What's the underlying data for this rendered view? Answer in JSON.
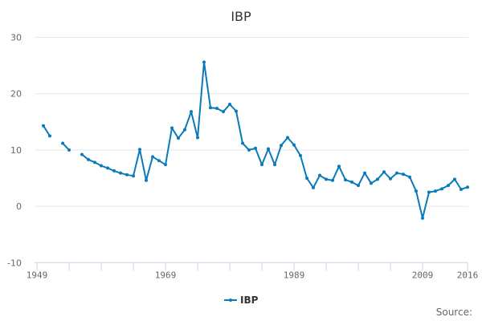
{
  "chart_data": {
    "type": "line",
    "title": "IBP",
    "xlabel": "",
    "ylabel": "",
    "ylim": [
      -10,
      30
    ],
    "yticks": [
      -10,
      0,
      10,
      20,
      30
    ],
    "xlim": [
      1949,
      2016
    ],
    "xtick_labels": [
      "1949",
      "1969",
      "1989",
      "2009",
      "2016"
    ],
    "xtick_marks": [
      1949,
      1954,
      1959,
      1964,
      1969,
      1974,
      1979,
      1984,
      1989,
      1994,
      1999,
      2004,
      2009,
      2016
    ],
    "grid": true,
    "legend_position": "bottom",
    "series": [
      {
        "name": "IBP",
        "color": "#0a7ab9",
        "points": [
          [
            1950,
            14.3
          ],
          [
            1951,
            12.5
          ],
          [
            1952,
            null
          ],
          [
            1953,
            11.2
          ],
          [
            1954,
            10.0
          ],
          [
            1955,
            null
          ],
          [
            1956,
            9.2
          ],
          [
            1957,
            8.3
          ],
          [
            1958,
            7.8
          ],
          [
            1959,
            7.2
          ],
          [
            1960,
            6.8
          ],
          [
            1961,
            6.3
          ],
          [
            1962,
            5.9
          ],
          [
            1963,
            5.6
          ],
          [
            1964,
            5.4
          ],
          [
            1965,
            10.1
          ],
          [
            1966,
            4.6
          ],
          [
            1967,
            8.8
          ],
          [
            1968,
            8.1
          ],
          [
            1969,
            7.4
          ],
          [
            1970,
            13.9
          ],
          [
            1971,
            12.1
          ],
          [
            1972,
            13.6
          ],
          [
            1973,
            16.8
          ],
          [
            1974,
            12.2
          ],
          [
            1975,
            25.6
          ],
          [
            1976,
            17.5
          ],
          [
            1977,
            17.4
          ],
          [
            1978,
            16.8
          ],
          [
            1979,
            18.1
          ],
          [
            1980,
            16.9
          ],
          [
            1981,
            11.2
          ],
          [
            1982,
            10.0
          ],
          [
            1983,
            10.3
          ],
          [
            1984,
            7.4
          ],
          [
            1985,
            10.2
          ],
          [
            1986,
            7.4
          ],
          [
            1987,
            10.8
          ],
          [
            1988,
            12.2
          ],
          [
            1989,
            10.9
          ],
          [
            1990,
            9.0
          ],
          [
            1991,
            5.0
          ],
          [
            1992,
            3.3
          ],
          [
            1993,
            5.5
          ],
          [
            1994,
            4.8
          ],
          [
            1995,
            4.6
          ],
          [
            1996,
            7.1
          ],
          [
            1997,
            4.7
          ],
          [
            1998,
            4.3
          ],
          [
            1999,
            3.7
          ],
          [
            2000,
            5.9
          ],
          [
            2001,
            4.1
          ],
          [
            2002,
            4.8
          ],
          [
            2003,
            6.1
          ],
          [
            2004,
            4.9
          ],
          [
            2005,
            5.9
          ],
          [
            2006,
            5.7
          ],
          [
            2007,
            5.2
          ],
          [
            2008,
            2.7
          ],
          [
            2009,
            -2.1
          ],
          [
            2010,
            2.5
          ],
          [
            2011,
            2.7
          ],
          [
            2012,
            3.1
          ],
          [
            2013,
            3.7
          ],
          [
            2014,
            4.8
          ],
          [
            2015,
            3.0
          ],
          [
            2016,
            3.4
          ]
        ]
      }
    ]
  },
  "legend": {
    "label": "IBP"
  },
  "credits": {
    "source_label": "Source:"
  }
}
